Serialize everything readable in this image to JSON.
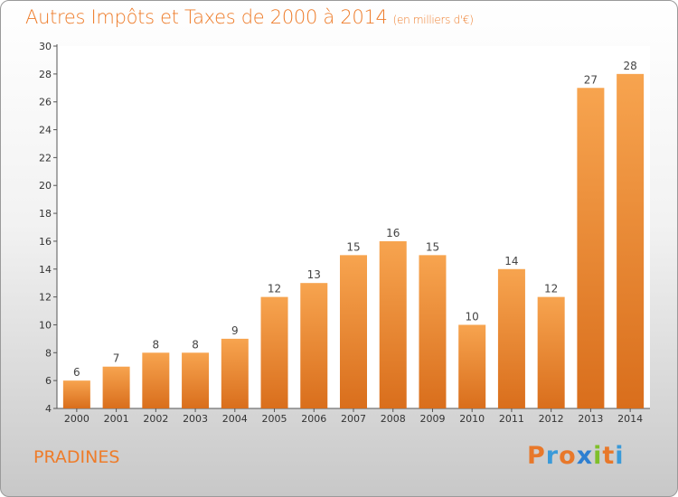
{
  "header": {
    "title": "Autres Impôts et Taxes de 2000 à 2014",
    "unit": "(en milliers d'€)"
  },
  "footer": {
    "commune": "PRADINES",
    "logo": [
      "P",
      "r",
      "o",
      "x",
      "i",
      "t",
      "i"
    ],
    "logo_colors": [
      "#e8782a",
      "#3a9ad9",
      "#e8782a",
      "#2e7fd1",
      "#7fbf2a",
      "#e8782a",
      "#3a9ad9"
    ]
  },
  "colors": {
    "bar_top": "#f7a44f",
    "bar_bottom": "#d96e1c",
    "accent": "#ee7c2a"
  },
  "chart_data": {
    "type": "bar",
    "title": "Autres Impôts et Taxes de 2000 à 2014",
    "categories": [
      "2000",
      "2001",
      "2002",
      "2003",
      "2004",
      "2005",
      "2006",
      "2007",
      "2008",
      "2009",
      "2010",
      "2011",
      "2012",
      "2013",
      "2014"
    ],
    "values": [
      6,
      7,
      8,
      8,
      9,
      12,
      13,
      15,
      16,
      15,
      10,
      14,
      12,
      27,
      28
    ],
    "ylim": [
      4,
      30
    ],
    "yticks": [
      "4",
      "6",
      "8",
      "10",
      "12",
      "14",
      "16",
      "18",
      "20",
      "22",
      "24",
      "26",
      "28",
      "30"
    ],
    "grid": false,
    "legend": "none"
  }
}
